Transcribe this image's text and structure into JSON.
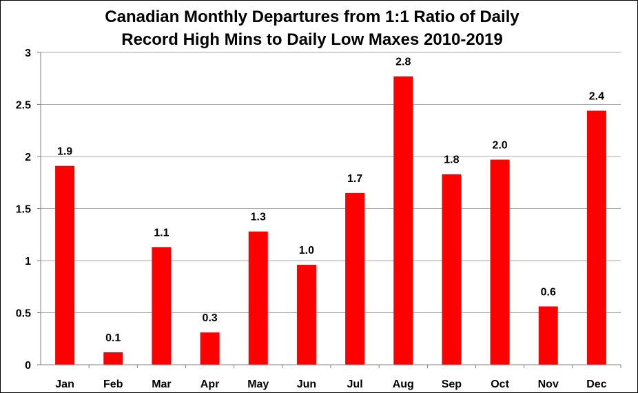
{
  "chart_data": {
    "type": "bar",
    "title_lines": [
      "Canadian Monthly Departures from 1:1 Ratio of Daily",
      "Record High Mins to Daily Low Maxes 2010-2019"
    ],
    "categories": [
      "Jan",
      "Feb",
      "Mar",
      "Apr",
      "May",
      "Jun",
      "Jul",
      "Aug",
      "Sep",
      "Oct",
      "Nov",
      "Dec"
    ],
    "values": [
      1.91,
      0.12,
      1.13,
      0.31,
      1.28,
      0.96,
      1.65,
      2.77,
      1.83,
      1.97,
      0.56,
      2.44
    ],
    "data_labels": [
      "1.9",
      "0.1",
      "1.1",
      "0.3",
      "1.3",
      "1.0",
      "1.7",
      "2.8",
      "1.8",
      "2.0",
      "0.6",
      "2.4"
    ],
    "y_ticks": [
      0,
      0.5,
      1,
      1.5,
      2,
      2.5,
      3
    ],
    "y_tick_labels": [
      "0",
      "0.5",
      "1",
      "1.5",
      "2",
      "2.5",
      "3"
    ],
    "ylim": [
      0,
      3
    ],
    "xlabel": "",
    "ylabel": "",
    "grid": true,
    "legend": "none",
    "bar_color": "#ff0000",
    "grid_color": "#a6a6a6",
    "axis_color": "#7f7f7f"
  }
}
